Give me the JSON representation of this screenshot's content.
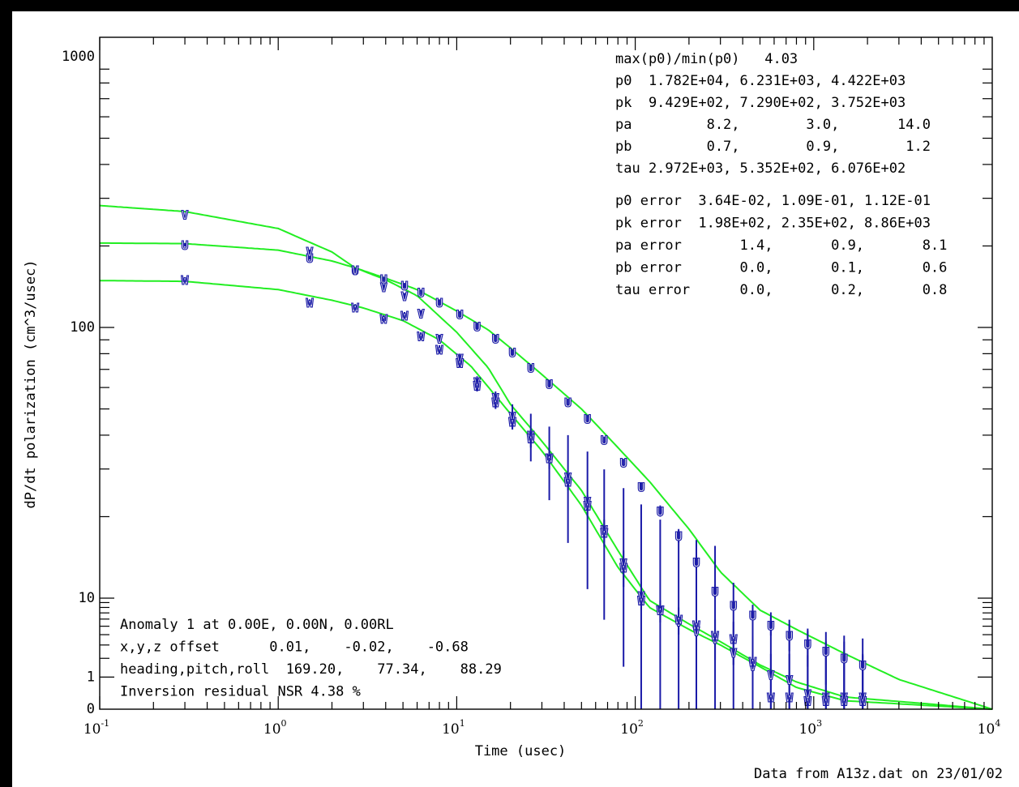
{
  "chart_data": {
    "type": "scatter",
    "xlabel": "Time  (usec)",
    "ylabel": "dP/dt polarization  (cm^3/usec)",
    "xscale": "log",
    "yscale": "log",
    "xlim": [
      0.1,
      10000
    ],
    "ylim": [
      0,
      1000
    ],
    "x_tick_labels": [
      {
        "base": "10",
        "exp": "-1"
      },
      {
        "base": "10",
        "exp": "0"
      },
      {
        "base": "10",
        "exp": "1"
      },
      {
        "base": "10",
        "exp": "2"
      },
      {
        "base": "10",
        "exp": "3"
      },
      {
        "base": "10",
        "exp": "4"
      }
    ],
    "y_tick_labels": [
      {
        "value": 1000,
        "label": "1000"
      },
      {
        "value": 100,
        "label": "100"
      },
      {
        "value": 10,
        "label": "10"
      },
      {
        "value": 1,
        "label": "1"
      },
      {
        "value": 0,
        "label": "0"
      }
    ],
    "info_top": [
      "max(p0)/min(p0)   4.03",
      "p0  1.782E+04, 6.231E+03, 4.422E+03",
      "pk  9.429E+02, 7.290E+02, 3.752E+03",
      "pa         8.2,        3.0,       14.0",
      "pb         0.7,        0.9,        1.2",
      "tau 2.972E+03, 5.352E+02, 6.076E+02"
    ],
    "info_errors": [
      "p0 error  3.64E-02, 1.09E-01, 1.12E-01",
      "pk error  1.98E+02, 2.35E+02, 8.86E+03",
      "pa error       1.4,       0.9,       8.1",
      "pb error       0.0,       0.1,       0.6",
      "tau error      0.0,       0.2,       0.8"
    ],
    "info_bottom": [
      "Anomaly 1 at 0.00E, 0.00N, 0.00RL",
      "x,y,z offset      0.01,    -0.02,    -0.68",
      "heading,pitch,roll  169.20,    77.34,    88.29",
      "Inversion residual NSR 4.38 %"
    ],
    "footer": "Data from A13z.dat on 23/01/02",
    "model_params": {
      "V": {
        "p0": 17820,
        "pk": 942.9,
        "pa": 8.2,
        "pb": 0.7,
        "tau": 2972
      },
      "U": {
        "p0": 6231,
        "pk": 729.0,
        "pa": 3.0,
        "pb": 0.9,
        "tau": 535.2
      },
      "W": {
        "p0": 4422,
        "pk": 3752,
        "pa": 14.0,
        "pb": 1.2,
        "tau": 607.6
      }
    },
    "series": [
      {
        "name": "U",
        "x": [
          0.3,
          1.5,
          2.7,
          3.9,
          5.1,
          6.3,
          8,
          10.4,
          13,
          16.5,
          20.5,
          26,
          33,
          42,
          54,
          67,
          86,
          108,
          138,
          175,
          220,
          280,
          355,
          455,
          575,
          730,
          925,
          1170,
          1480,
          1880
        ],
        "y": [
          202,
          181,
          163,
          151,
          143,
          135,
          124,
          112,
          101,
          91,
          81,
          71,
          62,
          53,
          46,
          38.5,
          31.7,
          25.8,
          21,
          17,
          13.6,
          10.6,
          8.4,
          6.6,
          5.1,
          3.9,
          3.1,
          2.5,
          2.0,
          1.6
        ],
        "err": [
          3,
          3,
          3,
          3,
          3,
          3,
          3,
          3,
          3,
          3,
          2,
          2,
          2,
          1.5,
          1.5,
          1,
          1,
          1,
          1,
          1,
          0.5,
          0.6,
          0.8,
          1,
          1.2,
          1.4,
          1.6,
          1.8,
          1.9,
          2.0
        ]
      },
      {
        "name": "V",
        "x": [
          0.3,
          1.5,
          2.7,
          3.9,
          5.1,
          6.3,
          8,
          10.4,
          13,
          16.5,
          20.5,
          26,
          33,
          42,
          54,
          67,
          86,
          108,
          138,
          175,
          220,
          280,
          355,
          455,
          575,
          730,
          925,
          1170,
          1480,
          1880
        ],
        "y": [
          262,
          191,
          163,
          141,
          131,
          113,
          91,
          77,
          63,
          55,
          47,
          40,
          33,
          28,
          22.8,
          17.9,
          13.5,
          10.2,
          7.5,
          5.7,
          4.4,
          3.6,
          2.4,
          1.55,
          1.1,
          0.9,
          0.4,
          0.3,
          0.3,
          0.3
        ],
        "err": [
          3,
          3,
          3,
          3,
          3,
          3,
          3,
          3,
          3,
          3,
          5,
          8,
          10,
          12,
          12,
          12,
          12,
          12,
          12,
          12,
          12,
          12,
          9,
          7,
          6,
          5,
          4,
          3,
          3,
          2
        ]
      },
      {
        "name": "W",
        "x": [
          0.3,
          1.5,
          2.7,
          3.9,
          5.1,
          6.3,
          8,
          10.4,
          13,
          16.5,
          20.5,
          26,
          33,
          42,
          54,
          67,
          86,
          108,
          138,
          175,
          220,
          280,
          355,
          455,
          575,
          730,
          925,
          1170,
          1480,
          1880
        ],
        "y": [
          150,
          124,
          119,
          108,
          111,
          93,
          83,
          74,
          61,
          53,
          45,
          39,
          33,
          27,
          22,
          17.5,
          13,
          9.5,
          7.5,
          6,
          5.2,
          3.9,
          3.6,
          1.8,
          0.3,
          0.3,
          0.2,
          0.2,
          0.2,
          0.2
        ],
        "err": [
          3,
          3,
          3,
          3,
          3,
          3,
          3,
          3,
          3,
          3,
          3,
          3,
          3,
          2,
          2,
          2,
          2,
          2,
          2,
          2,
          2,
          2,
          2,
          2,
          2,
          2,
          2,
          2,
          2,
          2
        ]
      }
    ],
    "colors": {
      "fit": "#22ee22",
      "marker": "#1a1aa8",
      "errorbar": "#1a1aa8",
      "axis": "#000000"
    }
  }
}
